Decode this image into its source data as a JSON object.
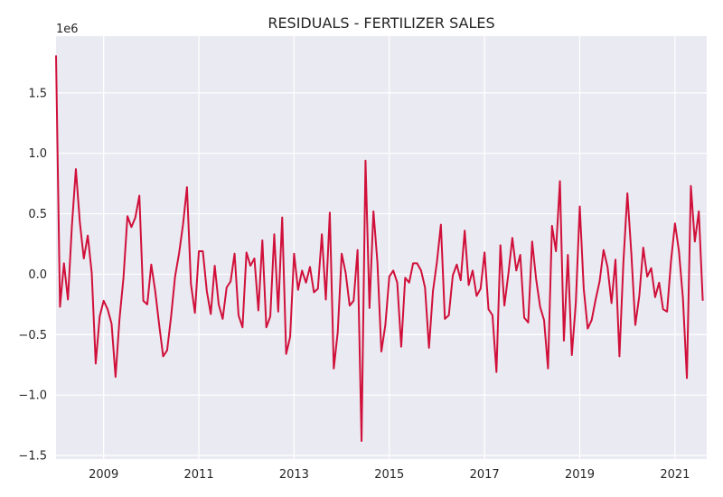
{
  "chart_data": {
    "type": "line",
    "title": "RESIDUALS - FERTILIZER SALES",
    "xlabel": "",
    "ylabel": "",
    "y_offset_label": "1e6",
    "x_ticks": [
      "2009",
      "2011",
      "2013",
      "2015",
      "2017",
      "2019",
      "2021"
    ],
    "y_ticks": [
      "1.5",
      "1.0",
      "0.5",
      "0.0",
      "−0.5",
      "−1.0",
      "−1.5"
    ],
    "y_tick_values": [
      1.5,
      1.0,
      0.5,
      0.0,
      -0.5,
      -1.0,
      -1.5
    ],
    "xlim": [
      "2008-01",
      "2021-09"
    ],
    "ylim": [
      -1.53,
      1.97
    ],
    "grid": true,
    "start": "2008-01",
    "frequency": "monthly",
    "series": [
      {
        "color": "#d0103a",
        "values": [
          1.81,
          -0.27,
          0.09,
          -0.21,
          0.4,
          0.87,
          0.43,
          0.13,
          0.32,
          0.01,
          -0.74,
          -0.35,
          -0.22,
          -0.29,
          -0.41,
          -0.85,
          -0.37,
          -0.03,
          0.48,
          0.39,
          0.47,
          0.65,
          -0.22,
          -0.25,
          0.08,
          -0.14,
          -0.42,
          -0.68,
          -0.63,
          -0.35,
          -0.02,
          0.17,
          0.41,
          0.72,
          -0.08,
          -0.32,
          0.19,
          0.19,
          -0.14,
          -0.33,
          0.07,
          -0.25,
          -0.37,
          -0.11,
          -0.06,
          0.17,
          -0.34,
          -0.44,
          0.18,
          0.07,
          0.13,
          -0.3,
          0.28,
          -0.44,
          -0.35,
          0.33,
          -0.31,
          0.47,
          -0.66,
          -0.52,
          0.17,
          -0.13,
          0.03,
          -0.07,
          0.06,
          -0.15,
          -0.12,
          0.33,
          -0.21,
          0.51,
          -0.78,
          -0.48,
          0.17,
          0.01,
          -0.26,
          -0.22,
          0.2,
          -1.38,
          0.94,
          -0.28,
          0.52,
          0.1,
          -0.64,
          -0.42,
          -0.02,
          0.03,
          -0.07,
          -0.6,
          -0.03,
          -0.07,
          0.09,
          0.09,
          0.03,
          -0.11,
          -0.61,
          -0.14,
          0.1,
          0.41,
          -0.37,
          -0.34,
          -0.01,
          0.08,
          -0.05,
          0.36,
          -0.09,
          0.03,
          -0.18,
          -0.12,
          0.18,
          -0.29,
          -0.34,
          -0.81,
          0.24,
          -0.26,
          0.0,
          0.3,
          0.03,
          0.16,
          -0.36,
          -0.4,
          0.27,
          -0.04,
          -0.27,
          -0.38,
          -0.78,
          0.4,
          0.19,
          0.77,
          -0.55,
          0.16,
          -0.67,
          -0.24,
          0.56,
          -0.12,
          -0.45,
          -0.38,
          -0.21,
          -0.06,
          0.2,
          0.06,
          -0.24,
          0.12,
          -0.68,
          0.1,
          0.67,
          0.17,
          -0.42,
          -0.18,
          0.22,
          -0.02,
          0.05,
          -0.19,
          -0.07,
          -0.29,
          -0.31,
          0.11,
          0.42,
          0.19,
          -0.2,
          -0.86,
          0.73,
          0.27,
          0.52,
          -0.22
        ]
      }
    ]
  }
}
